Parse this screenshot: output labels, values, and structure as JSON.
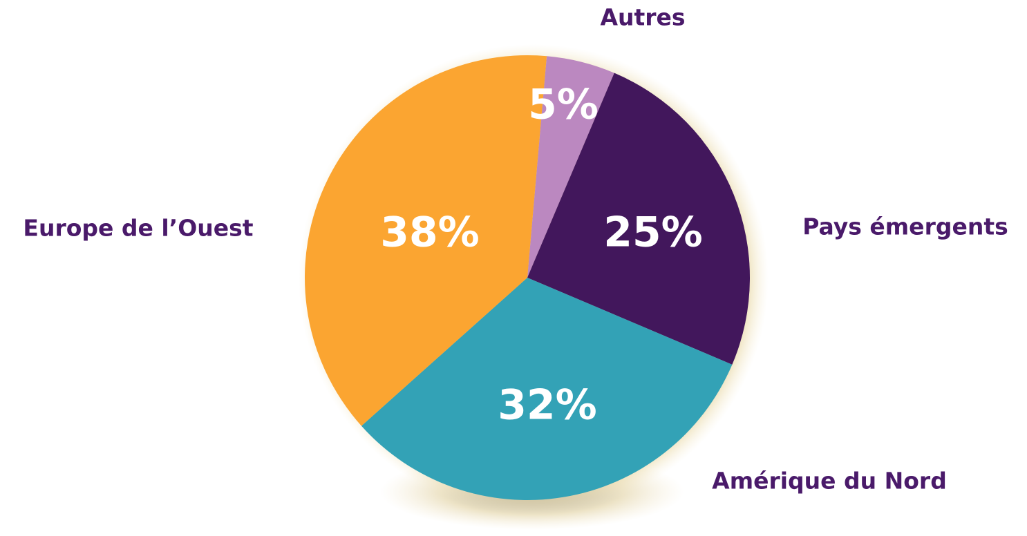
{
  "chart_data": {
    "type": "pie",
    "categories": [
      "Autres",
      "Pays émergents",
      "Amérique du Nord",
      "Europe de l’Ouest"
    ],
    "values": [
      5,
      25,
      32,
      38
    ],
    "value_labels": [
      "5%",
      "25%",
      "32%",
      "38%"
    ],
    "colors": [
      "#bb88c0",
      "#42175c",
      "#33a2b6",
      "#fba531"
    ]
  }
}
